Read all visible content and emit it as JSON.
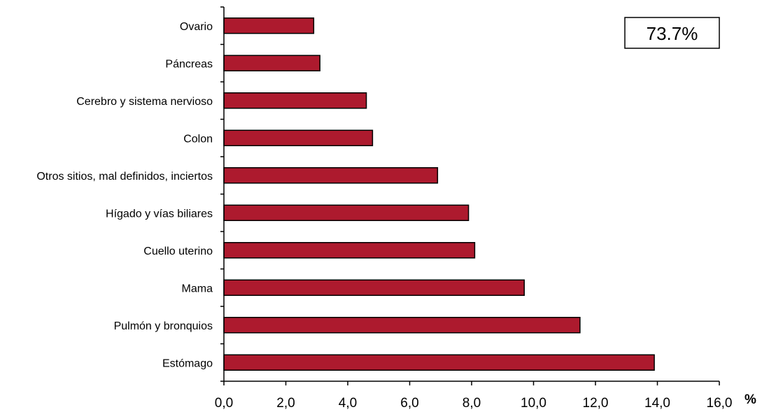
{
  "chart_data": {
    "type": "bar",
    "orientation": "horizontal",
    "categories": [
      "Estómago",
      "Pulmón y bronquios",
      "Mama",
      "Cuello uterino",
      "Hígado y vías biliares",
      "Otros sitios, mal definidos, inciertos",
      "Colon",
      "Cerebro y sistema nervioso",
      "Páncreas",
      "Ovario"
    ],
    "values": [
      13.9,
      11.5,
      9.7,
      8.1,
      7.9,
      6.9,
      4.8,
      4.6,
      3.1,
      2.9
    ],
    "xlim": [
      0,
      16
    ],
    "x_ticks": [
      "0,0",
      "2,0",
      "4,0",
      "6,0",
      "8,0",
      "10,0",
      "12,0",
      "14,0",
      "16,0"
    ],
    "x_unit": "%",
    "annotation": "73.7%",
    "bar_color": "#ad1a2e",
    "grid": false
  }
}
